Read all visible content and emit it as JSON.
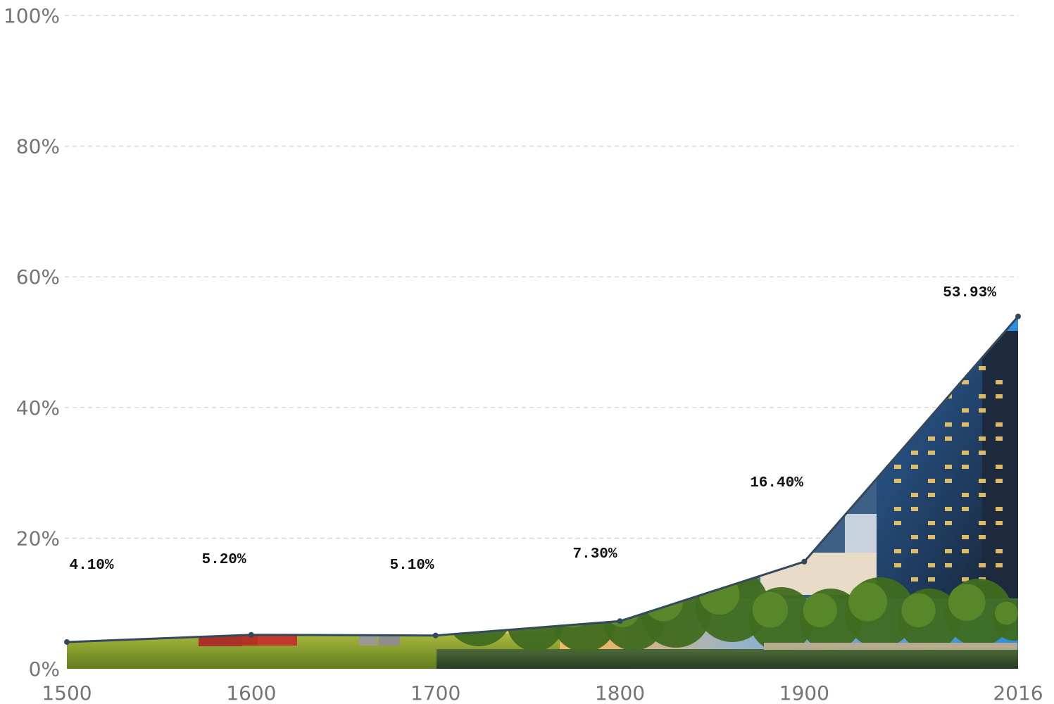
{
  "chart_data": {
    "type": "area",
    "title": "",
    "xlabel": "",
    "ylabel": "",
    "x": [
      1500,
      1600,
      1700,
      1800,
      1900,
      2016
    ],
    "x_ticks": [
      "1500",
      "1600",
      "1700",
      "1800",
      "1900",
      "2016"
    ],
    "ylim": [
      0,
      100
    ],
    "y_ticks": [
      "0%",
      "20%",
      "40%",
      "60%",
      "80%",
      "100%"
    ],
    "series": [
      {
        "values": [
          4.1,
          5.2,
          5.1,
          7.3,
          16.4,
          53.93
        ],
        "labels": [
          "4.10%",
          "5.20%",
          "5.10%",
          "7.30%",
          "16.40%",
          "53.93%"
        ]
      }
    ],
    "fill": "photo collage: farmland with red barn transitioning to city skyline at dusk",
    "grid": true,
    "legend": "none",
    "colors": {
      "line": "#34495e",
      "grid": "#cfcfcf",
      "tick_text": "#757575",
      "sky_warm": "#f2c77a",
      "mountains": "#8a8676",
      "field": "#7f9a2c",
      "barn": "#c0392b",
      "trees": "#3f6b1f",
      "water": "#2f4a2a",
      "building_blue": "#2e7fd1",
      "building_dark": "#1d2a3d",
      "window_light": "#ffd36b"
    }
  }
}
